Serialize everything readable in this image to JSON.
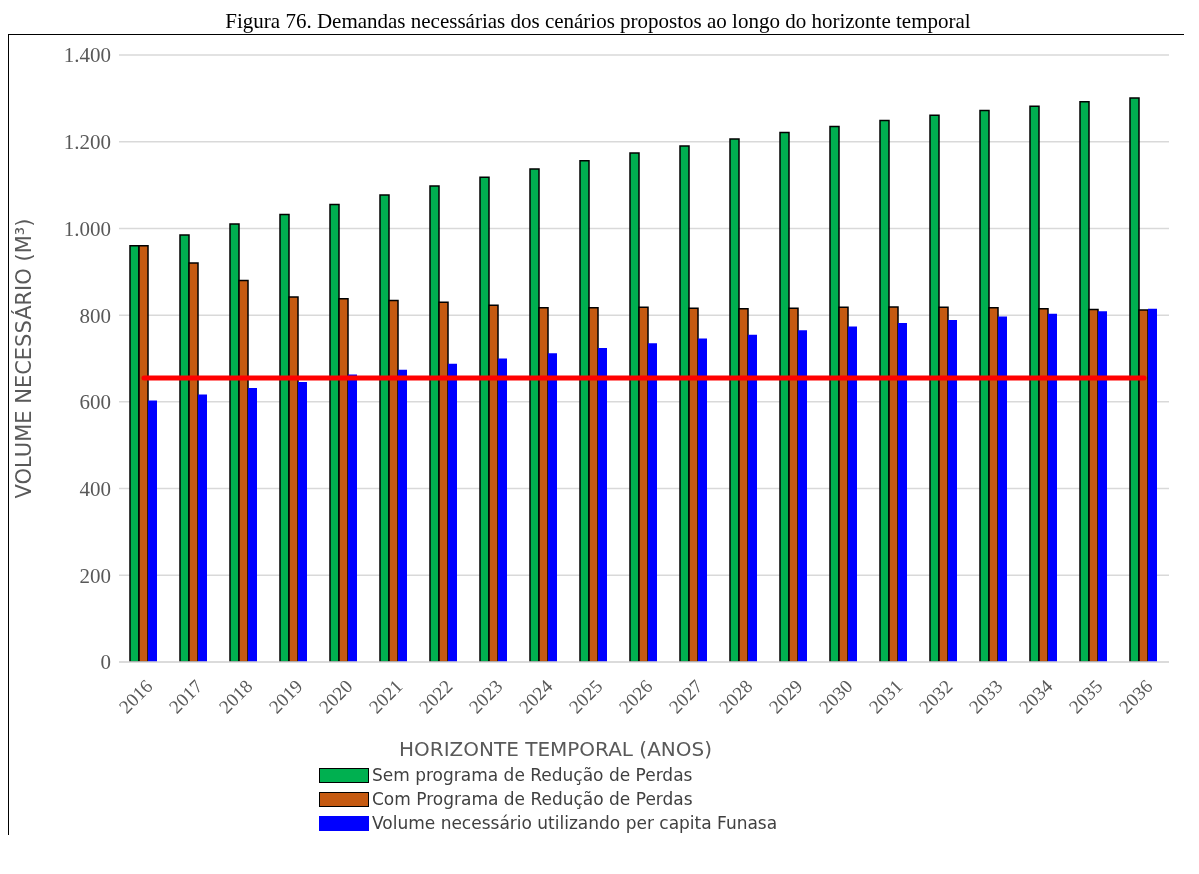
{
  "chart_data": {
    "type": "bar",
    "title": "Figura 76. Demandas necessárias dos cenários propostos ao longo do horizonte temporal",
    "xlabel": "HORIZONTE TEMPORAL (ANOS)",
    "ylabel": "VOLUME NECESSÁRIO (M³)",
    "categories": [
      "2016",
      "2017",
      "2018",
      "2019",
      "2020",
      "2021",
      "2022",
      "2023",
      "2024",
      "2025",
      "2026",
      "2027",
      "2028",
      "2029",
      "2030",
      "2031",
      "2032",
      "2033",
      "2034",
      "2035",
      "2036"
    ],
    "series": [
      {
        "name": "Sem programa de Redução de Perdas",
        "color": "#00b050",
        "values": [
          960,
          985,
          1010,
          1032,
          1055,
          1077,
          1098,
          1118,
          1137,
          1156,
          1174,
          1190,
          1206,
          1221,
          1235,
          1249,
          1261,
          1272,
          1282,
          1292,
          1301
        ]
      },
      {
        "name": "Com Programa de Redução de Perdas",
        "color": "#c55a11",
        "values": [
          960,
          920,
          880,
          842,
          838,
          834,
          830,
          823,
          817,
          817,
          818,
          816,
          815,
          816,
          818,
          819,
          818,
          817,
          815,
          813,
          812
        ]
      },
      {
        "name": "Volume necessário utilizando per capita Funasa",
        "color": "#0000ff",
        "values": [
          603,
          617,
          632,
          646,
          663,
          674,
          688,
          700,
          712,
          724,
          735,
          746,
          755,
          765,
          774,
          782,
          789,
          797,
          803,
          809,
          815
        ]
      }
    ],
    "ylim": [
      0,
      1400
    ],
    "yticks": [
      0,
      200,
      400,
      600,
      800,
      {
        "value": 1000,
        "label": "1.000"
      },
      {
        "value": 1200,
        "label": "1.200"
      },
      {
        "value": 1400,
        "label": "1.400"
      }
    ],
    "ref_lines": [
      {
        "axis": "y",
        "value": 655,
        "color": "#ff0000"
      }
    ],
    "grid": "y",
    "legend": "bottom"
  }
}
